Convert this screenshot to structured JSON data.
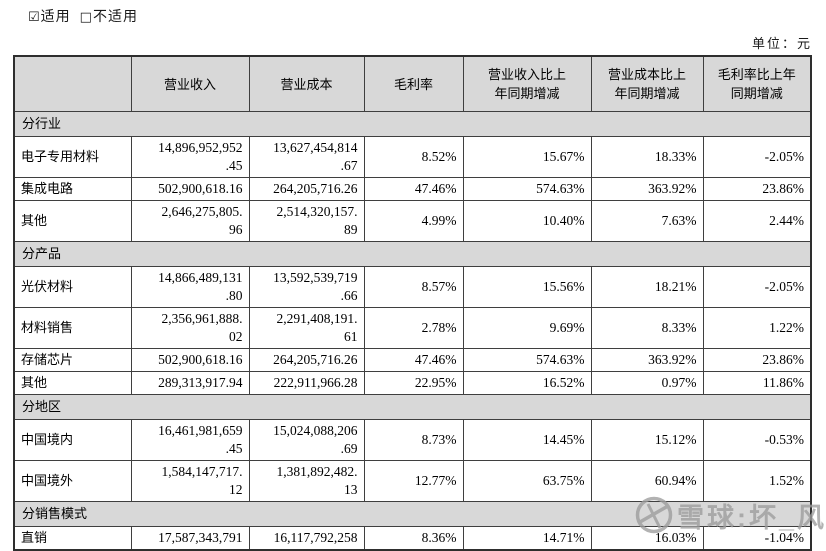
{
  "applicability": {
    "checked_icon": "☑",
    "checked_label": "适用",
    "unchecked_icon": "□",
    "unchecked_label": "不适用"
  },
  "unit_label": "单位：元",
  "table": {
    "columns": [
      "",
      "营业收入",
      "营业成本",
      "毛利率",
      "营业收入比上\n年同期增减",
      "营业成本比上\n年同期增减",
      "毛利率比上年\n同期增减"
    ],
    "sections": [
      {
        "name": "分行业",
        "rows": [
          {
            "label": "电子专用材料",
            "cells": [
              "14,896,952,952\n.45",
              "13,627,454,814\n.67",
              "8.52%",
              "15.67%",
              "18.33%",
              "-2.05%"
            ]
          },
          {
            "label": "集成电路",
            "cells": [
              "502,900,618.16",
              "264,205,716.26",
              "47.46%",
              "574.63%",
              "363.92%",
              "23.86%"
            ]
          },
          {
            "label": "其他",
            "cells": [
              "2,646,275,805.\n96",
              "2,514,320,157.\n89",
              "4.99%",
              "10.40%",
              "7.63%",
              "2.44%"
            ]
          }
        ]
      },
      {
        "name": "分产品",
        "rows": [
          {
            "label": "光伏材料",
            "cells": [
              "14,866,489,131\n.80",
              "13,592,539,719\n.66",
              "8.57%",
              "15.56%",
              "18.21%",
              "-2.05%"
            ]
          },
          {
            "label": "材料销售",
            "cells": [
              "2,356,961,888.\n02",
              "2,291,408,191.\n61",
              "2.78%",
              "9.69%",
              "8.33%",
              "1.22%"
            ]
          },
          {
            "label": "存储芯片",
            "cells": [
              "502,900,618.16",
              "264,205,716.26",
              "47.46%",
              "574.63%",
              "363.92%",
              "23.86%"
            ]
          },
          {
            "label": "其他",
            "cells": [
              "289,313,917.94",
              "222,911,966.28",
              "22.95%",
              "16.52%",
              "0.97%",
              "11.86%"
            ]
          }
        ]
      },
      {
        "name": "分地区",
        "rows": [
          {
            "label": "中国境内",
            "cells": [
              "16,461,981,659\n.45",
              "15,024,088,206\n.69",
              "8.73%",
              "14.45%",
              "15.12%",
              "-0.53%"
            ]
          },
          {
            "label": "中国境外",
            "cells": [
              "1,584,147,717.\n12",
              "1,381,892,482.\n13",
              "12.77%",
              "63.75%",
              "60.94%",
              "1.52%"
            ]
          }
        ]
      },
      {
        "name": "分销售模式",
        "rows": [
          {
            "label": "直销",
            "cells": [
              "17,587,343,791",
              "16,117,792,258",
              "8.36%",
              "14.71%",
              "16.03%",
              "-1.04%"
            ]
          }
        ]
      }
    ]
  },
  "watermark": {
    "logo_icon": "snowball-logo",
    "text": "雪球:坏_风"
  },
  "colors": {
    "header_bg": "#d8d8d8",
    "border": "#3f3f3f",
    "text": "#000000",
    "watermark": "#9d9d9d"
  }
}
